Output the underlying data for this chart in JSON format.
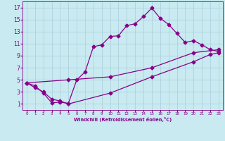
{
  "xlabel": "Windchill (Refroidissement éolien,°C)",
  "bg_color": "#c8eaf0",
  "grid_color": "#aaccdd",
  "line_color": "#880088",
  "xlim": [
    -0.5,
    23.5
  ],
  "ylim": [
    0,
    18
  ],
  "xticks": [
    0,
    1,
    2,
    3,
    4,
    5,
    6,
    7,
    8,
    9,
    10,
    11,
    12,
    13,
    14,
    15,
    16,
    17,
    18,
    19,
    20,
    21,
    22,
    23
  ],
  "yticks": [
    1,
    3,
    5,
    7,
    9,
    11,
    13,
    15,
    17
  ],
  "line1_x": [
    0,
    1,
    2,
    3,
    4,
    5,
    6,
    7,
    8,
    9,
    10,
    11,
    12,
    13,
    14,
    15,
    16,
    17,
    18,
    19,
    20,
    21,
    22,
    23
  ],
  "line1_y": [
    4.5,
    4.0,
    2.8,
    1.2,
    1.3,
    1.1,
    5.0,
    6.3,
    10.5,
    10.8,
    12.2,
    12.3,
    14.0,
    14.3,
    15.5,
    16.9,
    15.2,
    14.2,
    12.7,
    11.2,
    11.5,
    10.8,
    10.0,
    9.7
  ],
  "line2_x": [
    0,
    1,
    2,
    3,
    4,
    5,
    10,
    15,
    20,
    22,
    23
  ],
  "line2_y": [
    4.5,
    3.7,
    3.0,
    1.8,
    1.5,
    1.0,
    2.8,
    5.5,
    8.0,
    9.2,
    9.5
  ],
  "line3_x": [
    0,
    5,
    10,
    15,
    20,
    23
  ],
  "line3_y": [
    4.5,
    5.0,
    5.5,
    7.0,
    9.5,
    10.0
  ]
}
